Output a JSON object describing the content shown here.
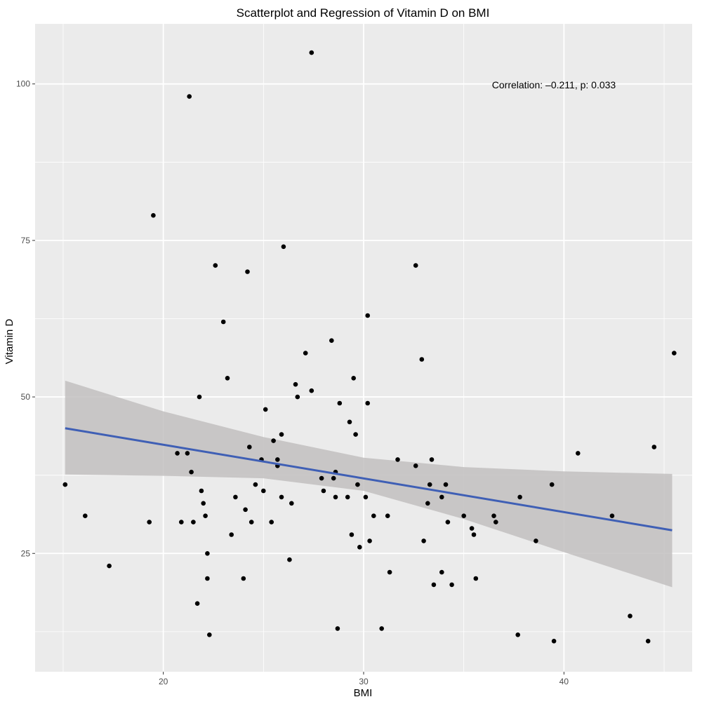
{
  "chart_data": {
    "type": "scatter",
    "title": "Scatterplot and Regression of Vitamin D on BMI",
    "xlabel": "BMI",
    "ylabel": "Vitamin D",
    "xlim": [
      13.6,
      46.4
    ],
    "ylim": [
      6.1,
      109.6
    ],
    "x_ticks": [
      20,
      30,
      40
    ],
    "y_ticks": [
      25,
      50,
      75,
      100
    ],
    "grid": true,
    "annotation": "Correlation: –0.211, p: 0.033",
    "colors": {
      "panel": "#ebebeb",
      "grid": "#ffffff",
      "point": "#000000",
      "line": "#3f5fb5",
      "band": "#c2c0c0"
    },
    "regression": {
      "x": [
        15.1,
        45.4
      ],
      "y": [
        45.0,
        28.7
      ]
    },
    "confidence_band": {
      "x": [
        15.1,
        20,
        25,
        30,
        35,
        40,
        45.4
      ],
      "lower": [
        37.6,
        37.4,
        37.0,
        35.0,
        30.5,
        25.2,
        19.6
      ],
      "upper": [
        52.6,
        47.7,
        43.6,
        40.3,
        38.8,
        38.1,
        37.7
      ]
    },
    "points": [
      {
        "x": 15.1,
        "y": 36
      },
      {
        "x": 16.1,
        "y": 31
      },
      {
        "x": 17.3,
        "y": 23
      },
      {
        "x": 19.3,
        "y": 30
      },
      {
        "x": 19.5,
        "y": 79
      },
      {
        "x": 20.7,
        "y": 41
      },
      {
        "x": 20.9,
        "y": 30
      },
      {
        "x": 21.2,
        "y": 41
      },
      {
        "x": 21.3,
        "y": 98
      },
      {
        "x": 21.4,
        "y": 38
      },
      {
        "x": 21.5,
        "y": 30
      },
      {
        "x": 21.7,
        "y": 17
      },
      {
        "x": 21.8,
        "y": 50
      },
      {
        "x": 21.9,
        "y": 35
      },
      {
        "x": 22.0,
        "y": 33
      },
      {
        "x": 22.1,
        "y": 31
      },
      {
        "x": 22.2,
        "y": 21
      },
      {
        "x": 22.2,
        "y": 25
      },
      {
        "x": 22.3,
        "y": 12
      },
      {
        "x": 22.6,
        "y": 71
      },
      {
        "x": 23.0,
        "y": 62
      },
      {
        "x": 23.2,
        "y": 53
      },
      {
        "x": 23.4,
        "y": 28
      },
      {
        "x": 23.6,
        "y": 34
      },
      {
        "x": 24.0,
        "y": 21
      },
      {
        "x": 24.1,
        "y": 32
      },
      {
        "x": 24.2,
        "y": 70
      },
      {
        "x": 24.3,
        "y": 42
      },
      {
        "x": 24.4,
        "y": 30
      },
      {
        "x": 24.6,
        "y": 36
      },
      {
        "x": 24.9,
        "y": 40
      },
      {
        "x": 25.0,
        "y": 35
      },
      {
        "x": 25.1,
        "y": 48
      },
      {
        "x": 25.4,
        "y": 30
      },
      {
        "x": 25.5,
        "y": 43
      },
      {
        "x": 25.7,
        "y": 39
      },
      {
        "x": 25.7,
        "y": 40
      },
      {
        "x": 25.9,
        "y": 44
      },
      {
        "x": 25.9,
        "y": 34
      },
      {
        "x": 26.0,
        "y": 74
      },
      {
        "x": 26.3,
        "y": 24
      },
      {
        "x": 26.4,
        "y": 33
      },
      {
        "x": 26.6,
        "y": 52
      },
      {
        "x": 26.7,
        "y": 50
      },
      {
        "x": 27.1,
        "y": 57
      },
      {
        "x": 27.4,
        "y": 51
      },
      {
        "x": 27.4,
        "y": 105
      },
      {
        "x": 27.9,
        "y": 37
      },
      {
        "x": 28.0,
        "y": 35
      },
      {
        "x": 28.4,
        "y": 59
      },
      {
        "x": 28.5,
        "y": 37
      },
      {
        "x": 28.6,
        "y": 34
      },
      {
        "x": 28.6,
        "y": 38
      },
      {
        "x": 28.7,
        "y": 13
      },
      {
        "x": 28.8,
        "y": 49
      },
      {
        "x": 29.2,
        "y": 34
      },
      {
        "x": 29.3,
        "y": 46
      },
      {
        "x": 29.4,
        "y": 28
      },
      {
        "x": 29.5,
        "y": 53
      },
      {
        "x": 29.6,
        "y": 44
      },
      {
        "x": 29.7,
        "y": 36
      },
      {
        "x": 29.8,
        "y": 26
      },
      {
        "x": 30.1,
        "y": 34
      },
      {
        "x": 30.2,
        "y": 49
      },
      {
        "x": 30.2,
        "y": 63
      },
      {
        "x": 30.3,
        "y": 27
      },
      {
        "x": 30.5,
        "y": 31
      },
      {
        "x": 30.9,
        "y": 13
      },
      {
        "x": 31.2,
        "y": 31
      },
      {
        "x": 31.3,
        "y": 22
      },
      {
        "x": 31.7,
        "y": 40
      },
      {
        "x": 32.6,
        "y": 39
      },
      {
        "x": 32.6,
        "y": 71
      },
      {
        "x": 32.9,
        "y": 56
      },
      {
        "x": 33.0,
        "y": 27
      },
      {
        "x": 33.2,
        "y": 33
      },
      {
        "x": 33.3,
        "y": 36
      },
      {
        "x": 33.4,
        "y": 40
      },
      {
        "x": 33.5,
        "y": 20
      },
      {
        "x": 33.9,
        "y": 34
      },
      {
        "x": 33.9,
        "y": 22
      },
      {
        "x": 34.1,
        "y": 36
      },
      {
        "x": 34.2,
        "y": 30
      },
      {
        "x": 34.4,
        "y": 20
      },
      {
        "x": 35.0,
        "y": 31
      },
      {
        "x": 35.4,
        "y": 29
      },
      {
        "x": 35.5,
        "y": 28
      },
      {
        "x": 35.6,
        "y": 21
      },
      {
        "x": 36.5,
        "y": 31
      },
      {
        "x": 36.6,
        "y": 30
      },
      {
        "x": 37.7,
        "y": 12
      },
      {
        "x": 37.8,
        "y": 34
      },
      {
        "x": 38.6,
        "y": 27
      },
      {
        "x": 39.4,
        "y": 36
      },
      {
        "x": 39.5,
        "y": 11
      },
      {
        "x": 40.7,
        "y": 41
      },
      {
        "x": 42.4,
        "y": 31
      },
      {
        "x": 43.3,
        "y": 15
      },
      {
        "x": 44.2,
        "y": 11
      },
      {
        "x": 44.5,
        "y": 42
      },
      {
        "x": 45.5,
        "y": 57
      }
    ]
  }
}
